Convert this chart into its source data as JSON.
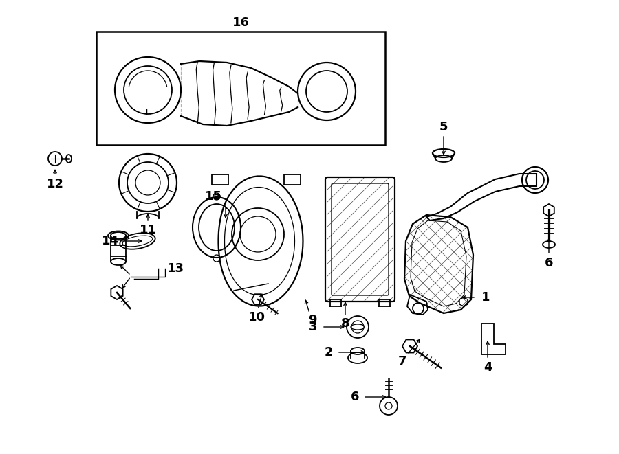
{
  "bg_color": "#ffffff",
  "line_color": "#000000",
  "fig_width": 9.0,
  "fig_height": 6.61,
  "dpi": 100,
  "label_fontsize": 13,
  "label_fontsize_sm": 11
}
